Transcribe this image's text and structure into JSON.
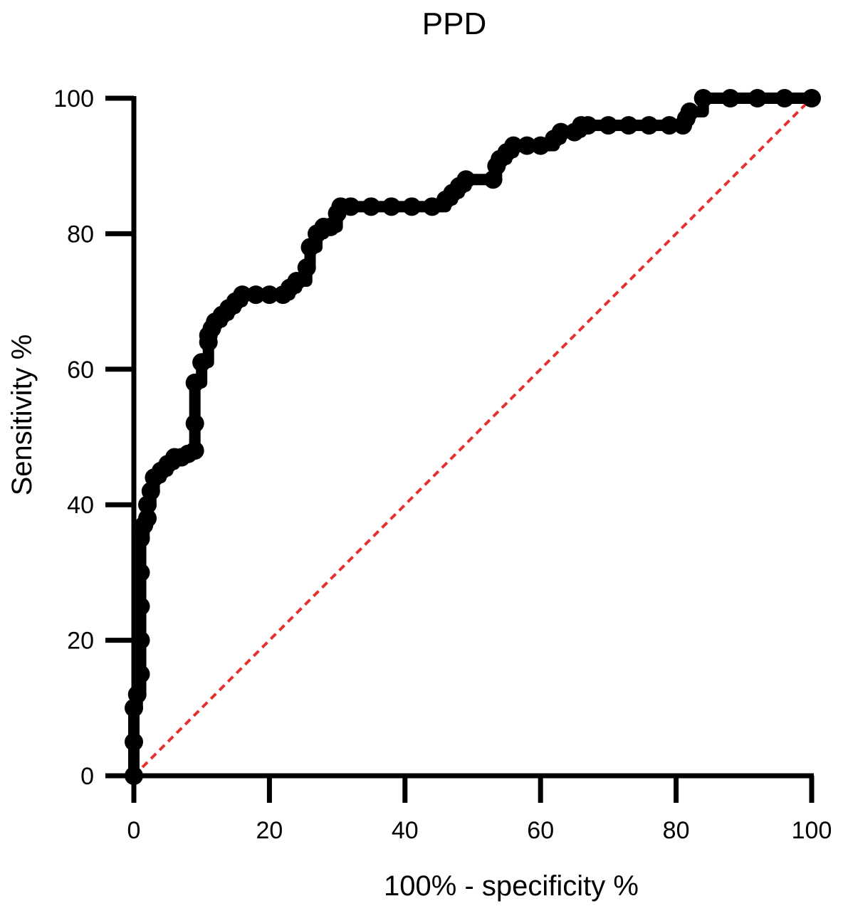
{
  "chart_data": {
    "type": "line",
    "title": "PPD",
    "xlabel": "100% - specificity %",
    "ylabel": "Sensitivity %",
    "xlim": [
      0,
      100
    ],
    "ylim": [
      0,
      100
    ],
    "xticks": [
      0,
      20,
      40,
      60,
      80,
      100
    ],
    "yticks": [
      0,
      20,
      40,
      60,
      80,
      100
    ],
    "grid": false,
    "colors": {
      "roc": "#000000",
      "reference": "#e53030",
      "axis": "#000000"
    },
    "series": [
      {
        "style": "solid-markers",
        "x": [
          0,
          0,
          0,
          0.5,
          1,
          1,
          1,
          1,
          1,
          1.5,
          2,
          2,
          2.5,
          3,
          3,
          4,
          5,
          6,
          7,
          8,
          9,
          9,
          9,
          10,
          10,
          11,
          11,
          11.5,
          12,
          13,
          14,
          15,
          16,
          18,
          20,
          22,
          23,
          24,
          25.5,
          26,
          27,
          28,
          29,
          30,
          30.5,
          32,
          35,
          38,
          41,
          44,
          46,
          47,
          48,
          49,
          53,
          53.5,
          54,
          55,
          56,
          58,
          60,
          62,
          63,
          65,
          66,
          67,
          70,
          73,
          76,
          79,
          81,
          81.5,
          82,
          84,
          88,
          92,
          96,
          100
        ],
        "y": [
          0,
          5,
          10,
          12,
          15,
          20,
          25,
          30,
          35,
          37,
          38,
          40,
          42,
          44,
          44,
          45,
          46,
          47,
          47,
          47.5,
          48,
          52,
          58,
          61,
          61,
          64,
          65,
          66,
          67,
          68,
          69,
          70,
          71,
          71,
          71,
          71,
          72,
          73,
          75,
          78,
          80,
          81,
          81,
          83,
          84,
          84,
          84,
          84,
          84,
          84,
          85,
          86,
          87,
          88,
          88,
          90,
          91,
          92,
          93,
          93,
          93,
          94,
          95,
          95,
          96,
          96,
          96,
          96,
          96,
          96,
          96,
          97,
          98,
          100,
          100,
          100,
          100,
          100
        ]
      },
      {
        "style": "dashed",
        "x": [
          0,
          100
        ],
        "y": [
          0,
          100
        ]
      }
    ]
  }
}
